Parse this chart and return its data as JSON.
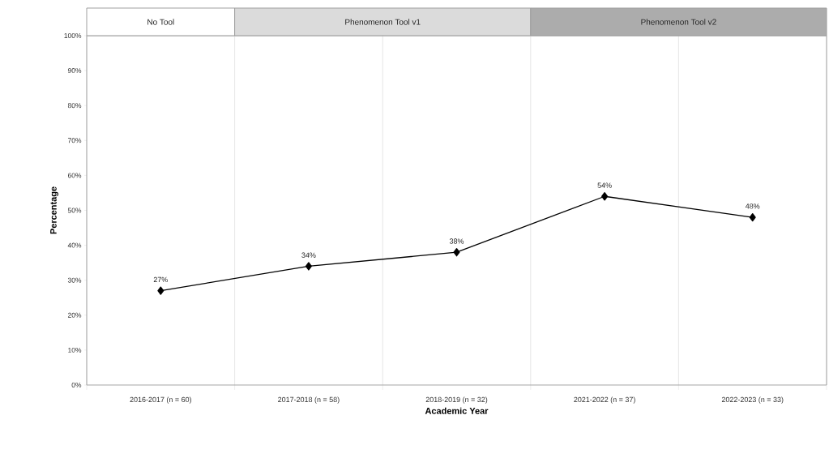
{
  "chart_data": {
    "type": "line",
    "xlabel": "Academic Year",
    "ylabel": "Percentage",
    "categories": [
      "2016-2017 (n = 60)",
      "2017-2018 (n = 58)",
      "2018-2019 (n = 32)",
      "2021-2022 (n = 37)",
      "2022-2023 (n = 33)"
    ],
    "series": [
      {
        "color": "#000000",
        "values": [
          27,
          34,
          38,
          54,
          48
        ],
        "value_labels": [
          "27%",
          "34%",
          "38%",
          "54%",
          "48%"
        ]
      }
    ],
    "ylim": [
      0,
      100
    ],
    "yticks": [
      {
        "value": 0,
        "label": "0%"
      },
      {
        "value": 10,
        "label": "10%"
      },
      {
        "value": 20,
        "label": "20%"
      },
      {
        "value": 30,
        "label": "30%"
      },
      {
        "value": 40,
        "label": "40%"
      },
      {
        "value": 50,
        "label": "50%"
      },
      {
        "value": 60,
        "label": "60%"
      },
      {
        "value": 70,
        "label": "70%"
      },
      {
        "value": 80,
        "label": "80%"
      },
      {
        "value": 90,
        "label": "90%"
      },
      {
        "value": 100,
        "label": "100%"
      }
    ],
    "annotations": [
      "No Tool",
      "Phenomenon Tool v1",
      "Phenomenon Tool v2"
    ],
    "grid": "x",
    "marker": "diamond",
    "line_style": "solid"
  }
}
